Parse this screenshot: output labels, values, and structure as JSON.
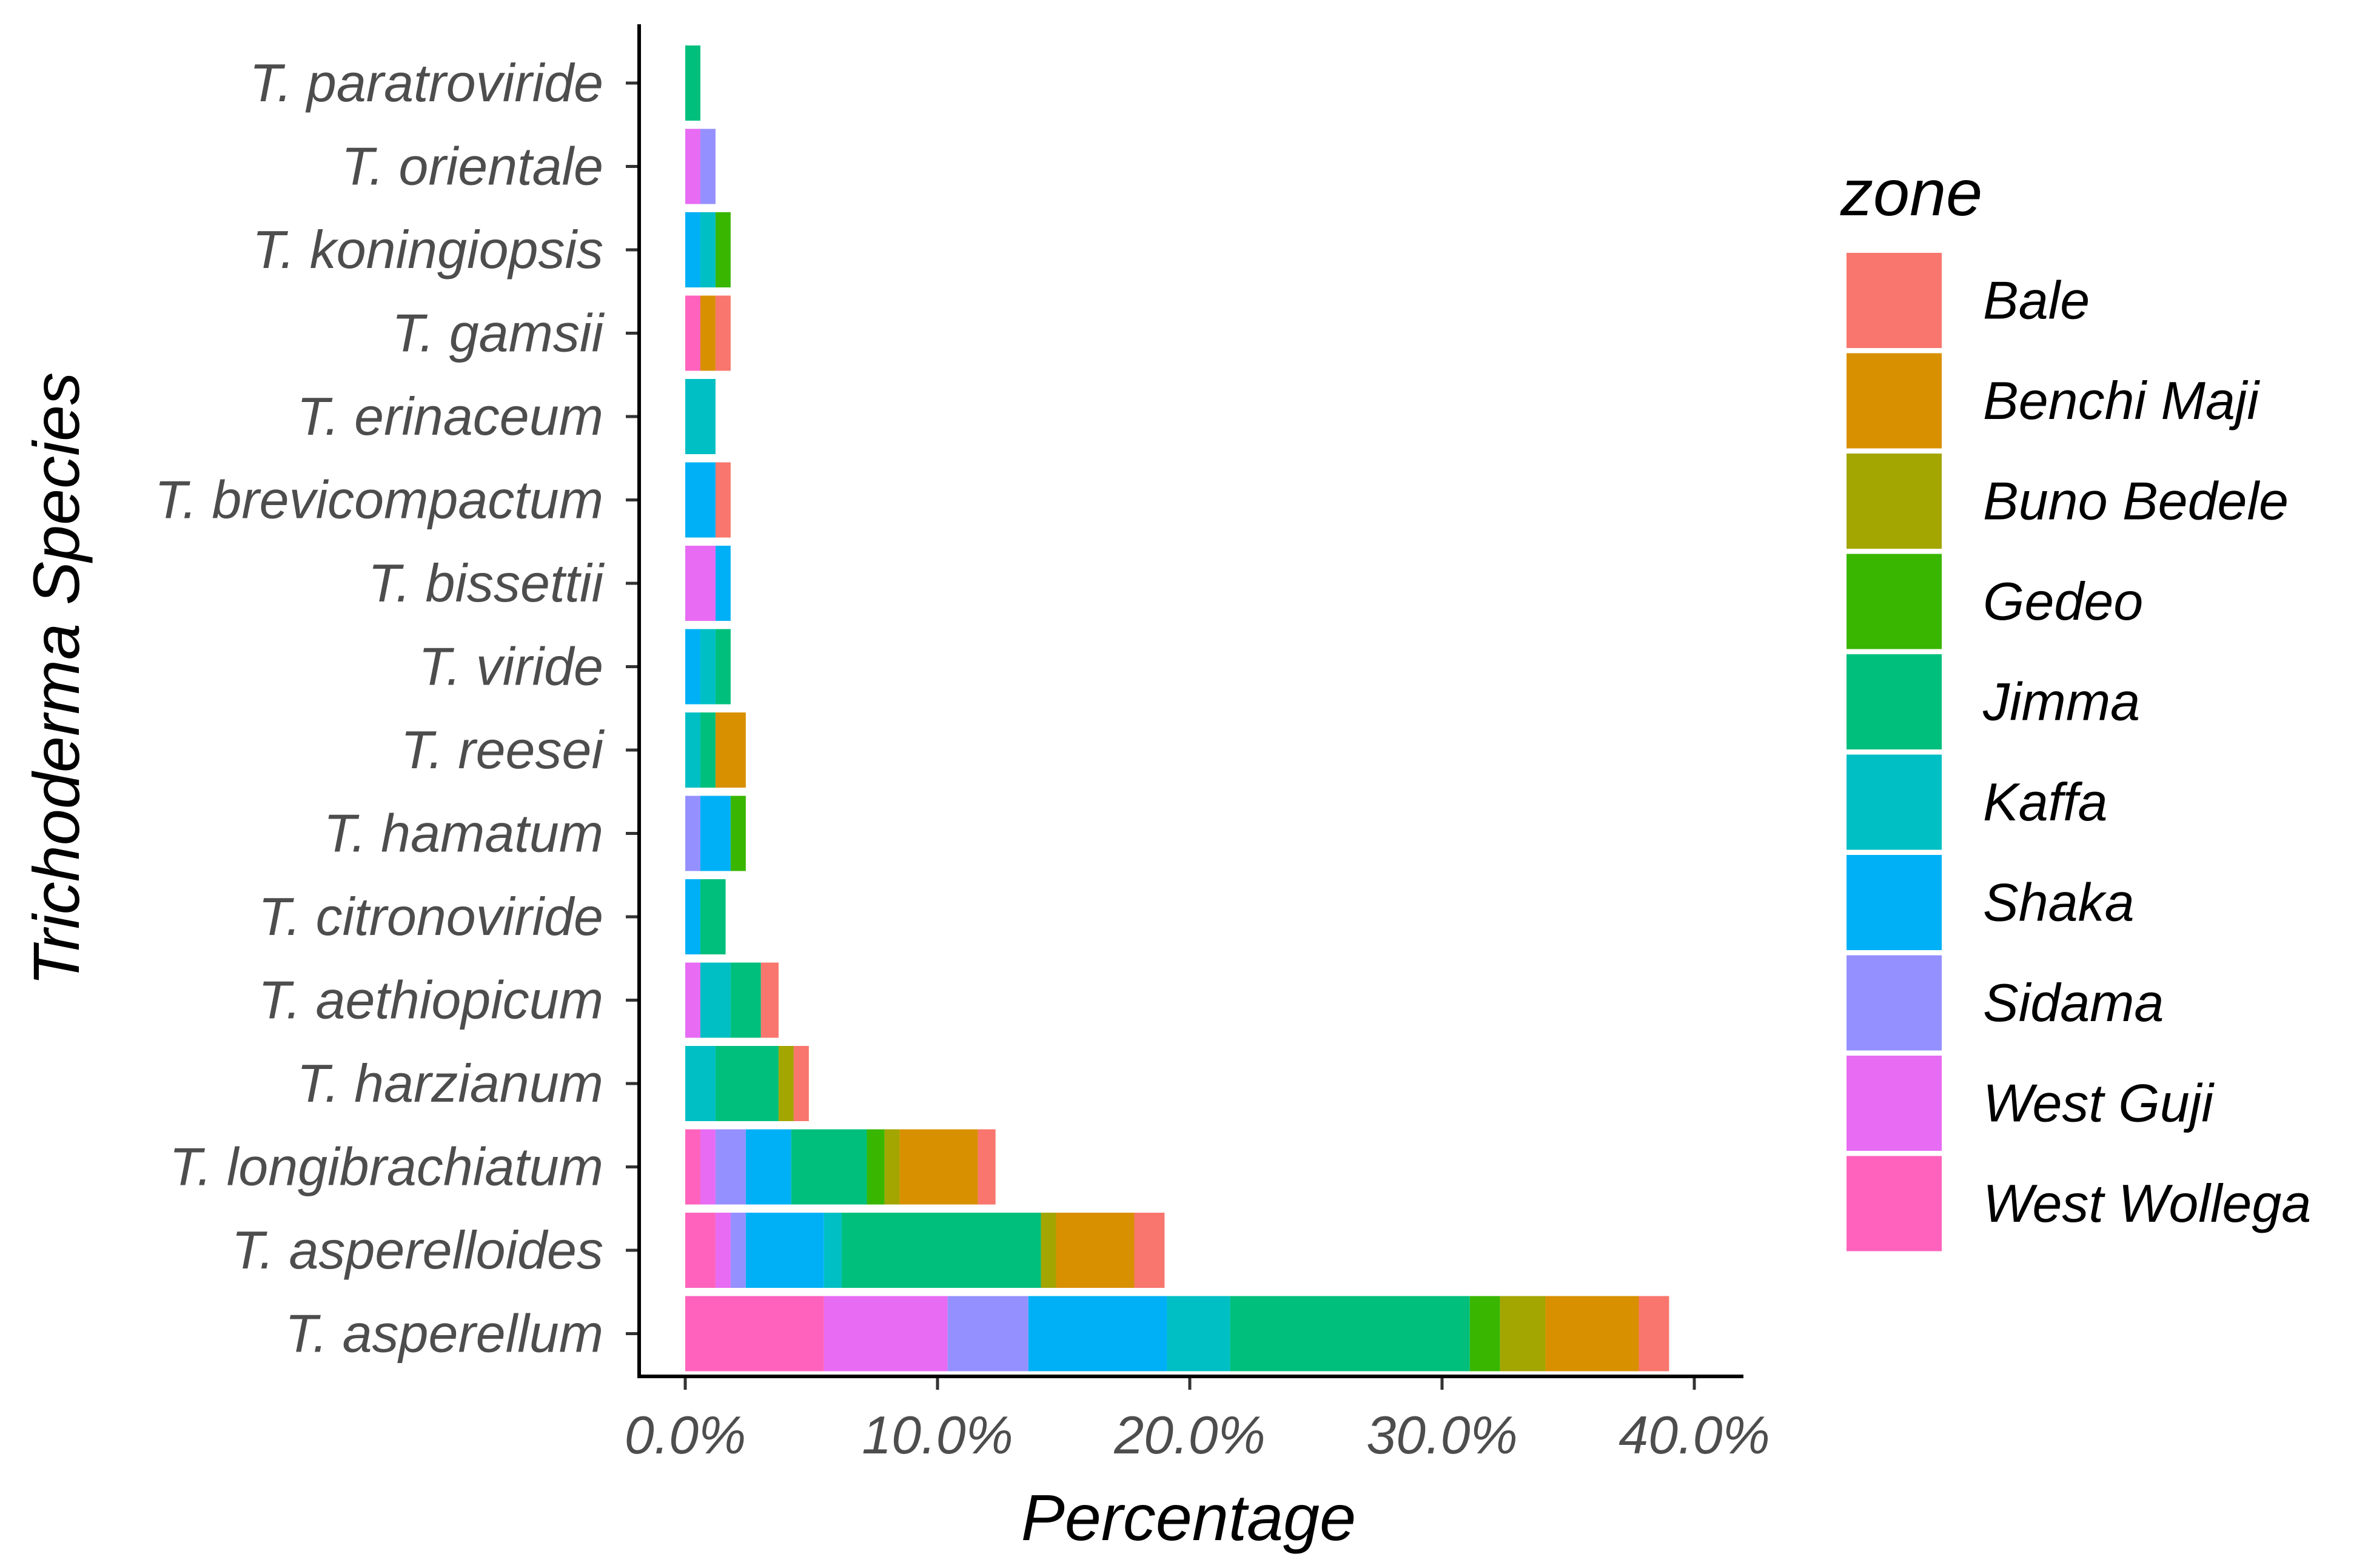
{
  "chart_data": {
    "type": "bar",
    "orientation": "horizontal",
    "stacked": true,
    "title": "",
    "xlabel": "Percentage",
    "ylabel": "Trichoderma Species",
    "xlim": [
      0,
      0.4
    ],
    "x_ticks": [
      0,
      0.1,
      0.2,
      0.3,
      0.4
    ],
    "x_tick_labels": [
      "0.0%",
      "10.0%",
      "20.0%",
      "30.0%",
      "40.0%"
    ],
    "grid": false,
    "legend_position": "right",
    "legend_title": "zone",
    "categories": [
      "T. paratroviride",
      "T. orientale",
      "T. koningiopsis",
      "T. gamsii",
      "T. erinaceum",
      "T. brevicompactum",
      "T. bissettii",
      "T. viride",
      "T. reesei",
      "T. hamatum",
      "T. citronoviride",
      "T. aethiopicum",
      "T. harzianum",
      "T. longibrachiatum",
      "T. asperelloides",
      "T. asperellum"
    ],
    "stack_order": [
      "West Wollega",
      "West Guji",
      "Sidama",
      "Shaka",
      "Kaffa",
      "Jimma",
      "Gedeo",
      "Buno Bedele",
      "Benchi Maji",
      "Bale"
    ],
    "series": [
      {
        "name": "Bale",
        "color": "#F8766D",
        "values": [
          0,
          0,
          0,
          0.006,
          0,
          0.006,
          0,
          0,
          0,
          0,
          0,
          0.007,
          0.006,
          0.007,
          0.012,
          0.012
        ]
      },
      {
        "name": "Benchi Maji",
        "color": "#D89000",
        "values": [
          0,
          0,
          0,
          0.006,
          0,
          0,
          0,
          0,
          0.012,
          0,
          0,
          0,
          0,
          0.031,
          0.031,
          0.037
        ]
      },
      {
        "name": "Buno Bedele",
        "color": "#A3A500",
        "values": [
          0,
          0,
          0,
          0,
          0,
          0,
          0,
          0,
          0,
          0,
          0,
          0,
          0.006,
          0.006,
          0.006,
          0.018
        ]
      },
      {
        "name": "Gedeo",
        "color": "#39B600",
        "values": [
          0,
          0,
          0.006,
          0,
          0,
          0,
          0,
          0,
          0,
          0.006,
          0,
          0,
          0,
          0.007,
          0,
          0.012
        ]
      },
      {
        "name": "Jimma",
        "color": "#00BF7D",
        "values": [
          0.006,
          0,
          0,
          0,
          0,
          0,
          0,
          0.006,
          0.006,
          0,
          0.01,
          0.012,
          0.025,
          0.03,
          0.079,
          0.095
        ]
      },
      {
        "name": "Kaffa",
        "color": "#00BFC4",
        "values": [
          0,
          0,
          0.006,
          0,
          0.012,
          0,
          0,
          0.006,
          0.006,
          0,
          0,
          0.012,
          0.012,
          0,
          0.007,
          0.025
        ]
      },
      {
        "name": "Shaka",
        "color": "#00B0F6",
        "values": [
          0,
          0,
          0.006,
          0,
          0,
          0.012,
          0.006,
          0.006,
          0,
          0.012,
          0.006,
          0,
          0,
          0.018,
          0.031,
          0.055
        ]
      },
      {
        "name": "Sidama",
        "color": "#9590FF",
        "values": [
          0,
          0.006,
          0,
          0,
          0,
          0,
          0,
          0,
          0,
          0.006,
          0,
          0,
          0,
          0.012,
          0.006,
          0.032
        ]
      },
      {
        "name": "West Guji",
        "color": "#E76BF3",
        "values": [
          0,
          0.006,
          0,
          0,
          0,
          0,
          0.012,
          0,
          0,
          0,
          0,
          0.006,
          0,
          0.006,
          0.006,
          0.049
        ]
      },
      {
        "name": "West Wollega",
        "color": "#FF62BC",
        "values": [
          0,
          0,
          0,
          0.006,
          0,
          0,
          0,
          0,
          0,
          0,
          0,
          0,
          0,
          0.006,
          0.012,
          0.055
        ]
      }
    ]
  }
}
